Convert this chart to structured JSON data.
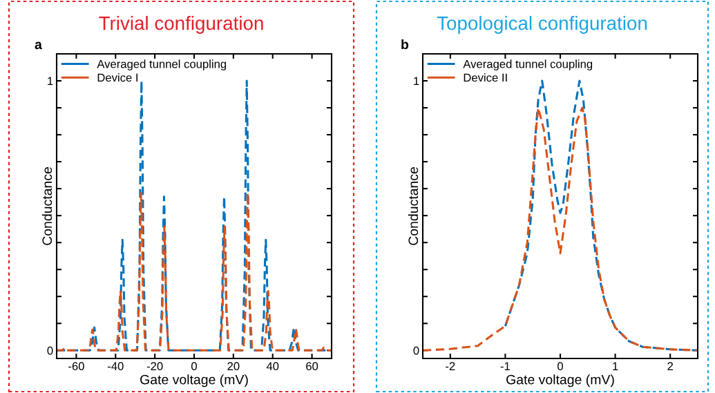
{
  "chart_data": [
    {
      "type": "line",
      "title": "Trivial configuration",
      "xlabel": "Gate voltage (mV)",
      "ylabel": "Conductance",
      "annotations": [
        "a"
      ],
      "xlim": [
        -70,
        70
      ],
      "xticks": [
        {
          "value": -60,
          "label": "-60"
        },
        {
          "value": -40,
          "label": "-40"
        },
        {
          "value": -20,
          "label": "-20"
        },
        0,
        20,
        40,
        60
      ],
      "ylim": [
        -0.03,
        1.1
      ],
      "yticks": [
        0,
        {
          "value": 0.1,
          "label": null
        },
        {
          "value": 0.2,
          "label": null
        },
        {
          "value": 0.3,
          "label": null
        },
        {
          "value": 0.4,
          "label": null
        },
        {
          "value": 0.5,
          "label": null
        },
        {
          "value": 0.6,
          "label": null
        },
        {
          "value": 0.7,
          "label": null
        },
        {
          "value": 0.8,
          "label": null
        },
        {
          "value": 0.9,
          "label": null
        },
        1
      ],
      "grid": false,
      "legend": "top left",
      "marker": "none",
      "line_style": "dashed",
      "series": [
        {
          "name": "Averaged tunnel coupling",
          "color": "#0072bd",
          "x": [
            -70,
            -53,
            -51.8,
            -51.3,
            -50.8,
            -50.3,
            -49.8,
            -48.6,
            -38.7,
            -37.5,
            -37,
            -36.5,
            -36,
            -35.5,
            -34.3,
            -29,
            -27.8,
            -27.3,
            -26.8,
            -26.3,
            -25.8,
            -24.6,
            -17.5,
            -16.3,
            -15.8,
            -15.3,
            -14.8,
            -14.3,
            -13.1,
            13.1,
            14.3,
            14.8,
            15.3,
            15.8,
            16.3,
            17.5,
            24.6,
            25.8,
            26.3,
            26.8,
            27.3,
            27.8,
            29,
            34.3,
            35.5,
            36,
            36.5,
            37,
            37.5,
            38.7,
            48.6,
            49.8,
            50.3,
            50.8,
            51.3,
            51.8,
            53,
            70
          ],
          "values": [
            0,
            0,
            0.03,
            0.06,
            0.085,
            0.06,
            0.03,
            0,
            0,
            0.12,
            0.31,
            0.41,
            0.31,
            0.12,
            0,
            0,
            0.3,
            0.75,
            1.0,
            0.75,
            0.3,
            0,
            0,
            0.17,
            0.43,
            0.57,
            0.43,
            0.17,
            0,
            0,
            0.17,
            0.43,
            0.57,
            0.43,
            0.17,
            0,
            0,
            0.3,
            0.75,
            1.0,
            0.75,
            0.3,
            0,
            0,
            0.12,
            0.31,
            0.41,
            0.31,
            0.12,
            0,
            0,
            0.03,
            0.06,
            0.085,
            0.06,
            0.03,
            0,
            0
          ]
        },
        {
          "name": "Device I",
          "color": "#d95319",
          "x": [
            -70,
            -67,
            -66,
            -65,
            -53.5,
            -52.8,
            -52.3,
            -51.8,
            -51.3,
            -50.8,
            -50,
            -39.7,
            -38.5,
            -38,
            -37.5,
            -37,
            -36.5,
            -35.3,
            -29.2,
            -28,
            -27.5,
            -27,
            -26.5,
            -26,
            -24.8,
            -17.4,
            -16.2,
            -15.7,
            -15.2,
            -14.7,
            -14.2,
            -13,
            13.3,
            14.5,
            15,
            15.5,
            16,
            16.5,
            17.7,
            25.1,
            26.3,
            26.8,
            27.3,
            27.8,
            28.3,
            29.5,
            35.5,
            36.7,
            37.2,
            37.7,
            38.2,
            38.7,
            39.9,
            50,
            50.8,
            51.3,
            51.8,
            52.3,
            52.8,
            53.5,
            65,
            66,
            67,
            70
          ],
          "values": [
            0,
            0,
            0.01,
            0,
            0,
            0.025,
            0.058,
            0.077,
            0.058,
            0.025,
            0,
            0,
            0.07,
            0.17,
            0.22,
            0.17,
            0.07,
            0,
            0,
            0.18,
            0.44,
            0.585,
            0.44,
            0.18,
            0,
            0,
            0.14,
            0.35,
            0.46,
            0.35,
            0.14,
            0,
            0,
            0.14,
            0.35,
            0.46,
            0.35,
            0.14,
            0,
            0,
            0.18,
            0.44,
            0.585,
            0.44,
            0.18,
            0,
            0,
            0.07,
            0.17,
            0.22,
            0.17,
            0.07,
            0,
            0,
            0.025,
            0.06,
            0.08,
            0.06,
            0.025,
            0,
            0,
            0.01,
            0,
            0
          ]
        }
      ]
    },
    {
      "type": "line",
      "title": "Topological configuration",
      "xlabel": "Gate voltage (mV)",
      "ylabel": "Conductance",
      "annotations": [
        "b"
      ],
      "xlim": [
        -2.5,
        2.5
      ],
      "xticks": [
        {
          "value": -2,
          "label": "-2"
        },
        {
          "value": -1,
          "label": "-1"
        },
        0,
        1,
        2
      ],
      "ylim": [
        -0.03,
        1.1
      ],
      "yticks": [
        0,
        {
          "value": 0.1,
          "label": null
        },
        {
          "value": 0.2,
          "label": null
        },
        {
          "value": 0.3,
          "label": null
        },
        {
          "value": 0.4,
          "label": null
        },
        {
          "value": 0.5,
          "label": null
        },
        {
          "value": 0.6,
          "label": null
        },
        {
          "value": 0.7,
          "label": null
        },
        {
          "value": 0.8,
          "label": null
        },
        {
          "value": 0.9,
          "label": null
        },
        1
      ],
      "grid": false,
      "legend": "top left",
      "marker": "none",
      "line_style": "dashed",
      "series": [
        {
          "name": "Averaged tunnel coupling",
          "color": "#0072bd",
          "x": [
            -1,
            -0.75,
            -0.6,
            -0.5,
            -0.45,
            -0.4,
            -0.33,
            -0.25,
            -0.15,
            -0.05,
            0,
            0.05,
            0.15,
            0.25,
            0.35,
            0.42,
            0.5,
            0.55,
            0.6,
            0.7,
            0.8,
            0.9,
            1,
            1.25,
            1.5,
            2,
            2.5
          ],
          "values": [
            0.09,
            0.24,
            0.36,
            0.56,
            0.8,
            0.93,
            1.0,
            0.88,
            0.69,
            0.555,
            0.51,
            0.54,
            0.7,
            0.88,
            1.0,
            0.93,
            0.74,
            0.59,
            0.42,
            0.28,
            0.19,
            0.13,
            0.085,
            0.034,
            0.013,
            0.004,
            0
          ]
        },
        {
          "name": "Device II",
          "color": "#d95319",
          "x": [
            -2.5,
            -2,
            -1.5,
            -1.25,
            -1,
            -0.75,
            -0.6,
            -0.5,
            -0.45,
            -0.4,
            -0.3,
            -0.2,
            -0.1,
            0,
            0.1,
            0.2,
            0.3,
            0.4,
            0.45,
            0.5,
            0.6,
            0.7,
            0.8,
            0.9,
            1,
            1.25,
            1.5,
            2,
            2.5
          ],
          "values": [
            0,
            0.005,
            0.017,
            0.055,
            0.09,
            0.24,
            0.4,
            0.66,
            0.8,
            0.9,
            0.82,
            0.65,
            0.48,
            0.36,
            0.5,
            0.69,
            0.85,
            0.9,
            0.86,
            0.75,
            0.48,
            0.3,
            0.19,
            0.13,
            0.085,
            0.034,
            0.013,
            0.004,
            0
          ]
        }
      ]
    }
  ]
}
